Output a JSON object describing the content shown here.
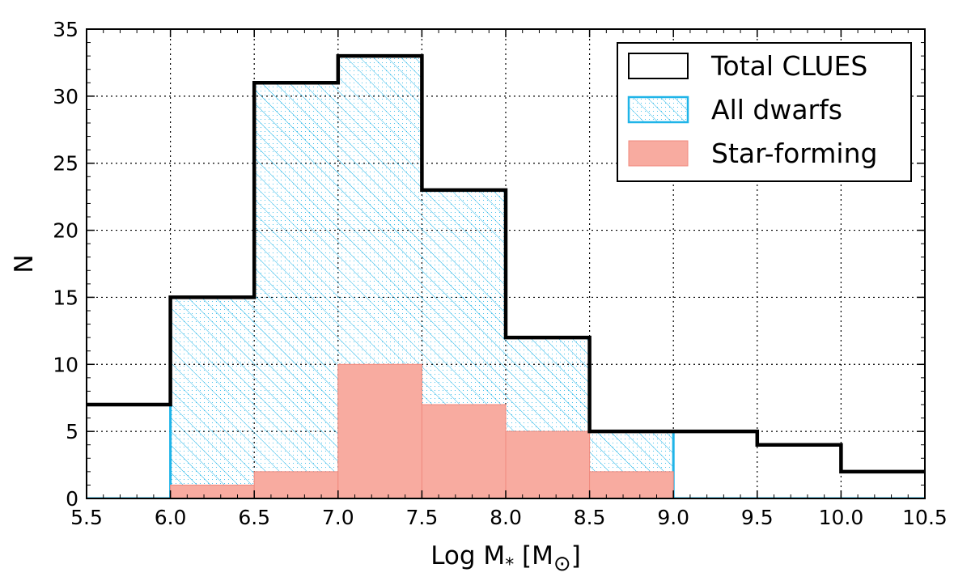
{
  "chart_data": {
    "type": "bar",
    "xlabel": "Log M",
    "xlabel_sub": "*",
    "xlabel_unit_open": " [M",
    "xlabel_unit_close": "]",
    "ylabel": "N",
    "xlim": [
      5.5,
      10.5
    ],
    "ylim": [
      0,
      35
    ],
    "grid": true,
    "legend_placement": "top-right",
    "x_ticks": [
      "5.5",
      "6.0",
      "6.5",
      "7.0",
      "7.5",
      "8.0",
      "8.5",
      "9.0",
      "9.5",
      "10.0",
      "10.5"
    ],
    "y_ticks": [
      "0",
      "5",
      "10",
      "15",
      "20",
      "25",
      "30",
      "35"
    ],
    "bin_edges": [
      5.5,
      6.0,
      6.5,
      7.0,
      7.5,
      8.0,
      8.5,
      9.0,
      9.5,
      10.0,
      10.5
    ],
    "series": [
      {
        "name": "Total CLUES",
        "style": "step-outline",
        "color": "#000000",
        "values": [
          7,
          15,
          31,
          33,
          23,
          12,
          5,
          5,
          4,
          2
        ]
      },
      {
        "name": "All dwarfs",
        "style": "hatched",
        "color": "#1fb4e8",
        "values": [
          0,
          15,
          31,
          33,
          23,
          12,
          5,
          0,
          0,
          0
        ]
      },
      {
        "name": "Star-forming",
        "style": "filled",
        "color": "#f8aba0",
        "values": [
          0,
          1,
          2,
          10,
          7,
          5,
          2,
          0,
          0,
          0
        ]
      }
    ]
  }
}
